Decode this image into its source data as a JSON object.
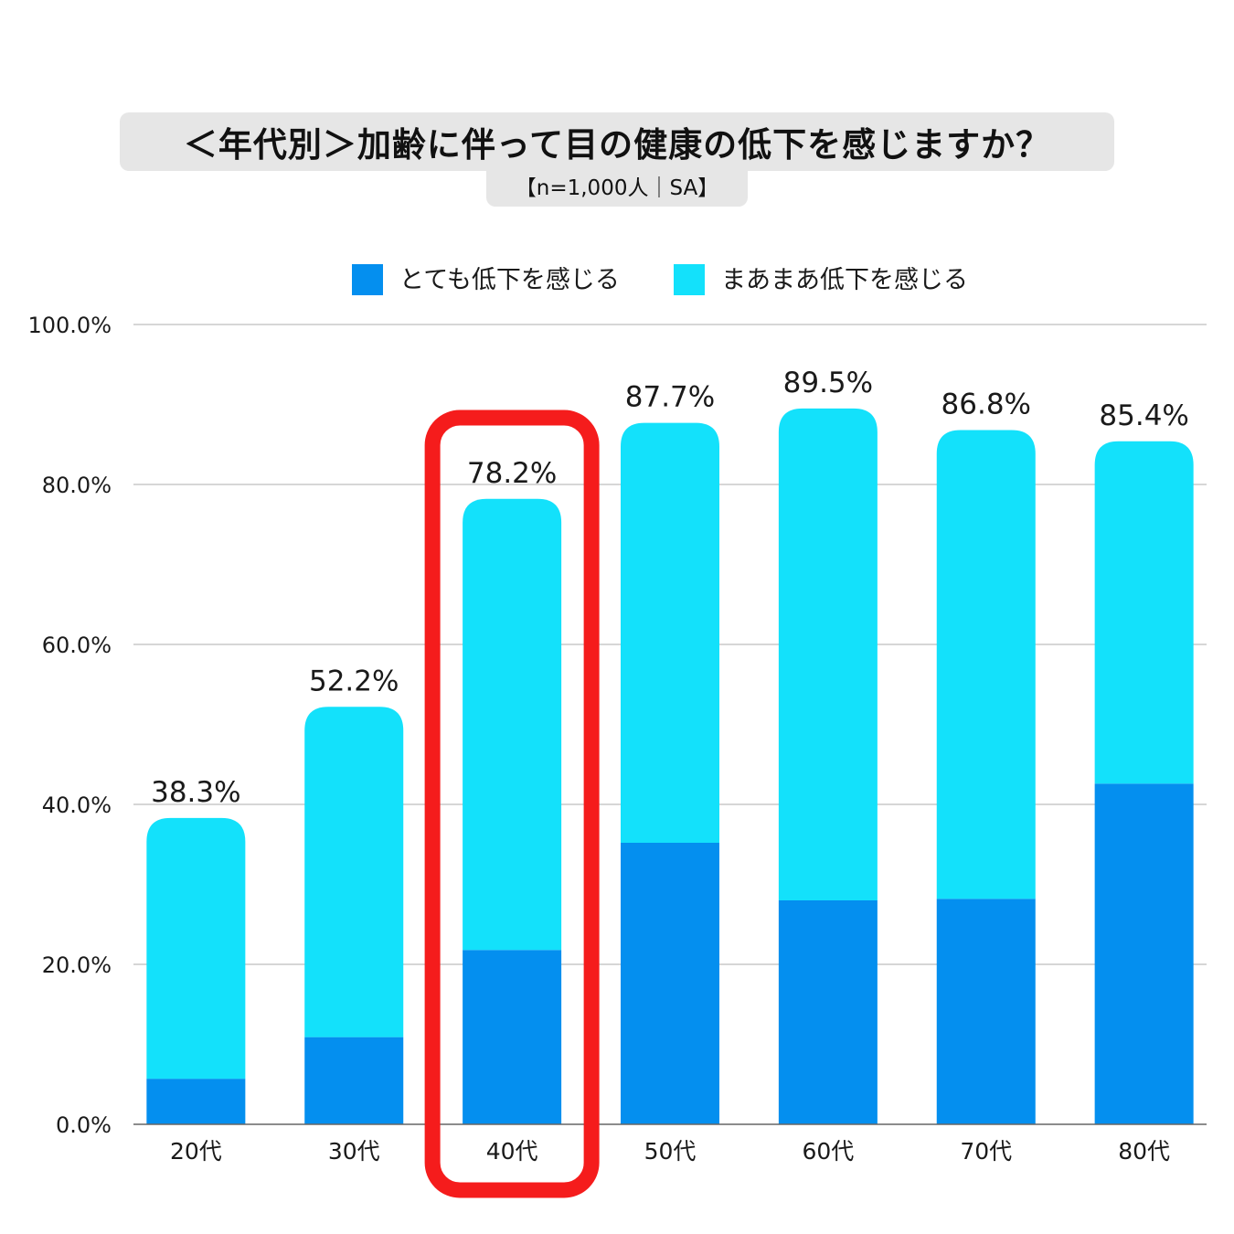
{
  "header": {
    "title": "＜年代別＞加齢に伴って目の健康の低下を感じますか？",
    "subtitle": "【n=1,000人｜SA】"
  },
  "chart_data": {
    "type": "bar",
    "stacked": true,
    "categories": [
      "20代",
      "30代",
      "40代",
      "50代",
      "60代",
      "70代",
      "80代"
    ],
    "series": [
      {
        "name": "とても低下を感じる",
        "color": "#048fef",
        "values": [
          5.7,
          10.9,
          21.8,
          35.2,
          28.0,
          28.2,
          42.6
        ]
      },
      {
        "name": "まあまあ低下を感じる",
        "color": "#13e1fb",
        "values": [
          32.6,
          41.3,
          56.4,
          52.5,
          61.5,
          58.6,
          42.8
        ]
      }
    ],
    "totals": [
      "38.3%",
      "52.2%",
      "78.2%",
      "87.7%",
      "89.5%",
      "86.8%",
      "85.4%"
    ],
    "ylim": [
      0,
      100
    ],
    "yticks": [
      "0.0%",
      "20.0%",
      "40.0%",
      "60.0%",
      "80.0%",
      "100.0%"
    ],
    "grid": true,
    "legend_position": "top-center",
    "highlight_category": "40代",
    "highlight_color": "#f51c1c"
  }
}
